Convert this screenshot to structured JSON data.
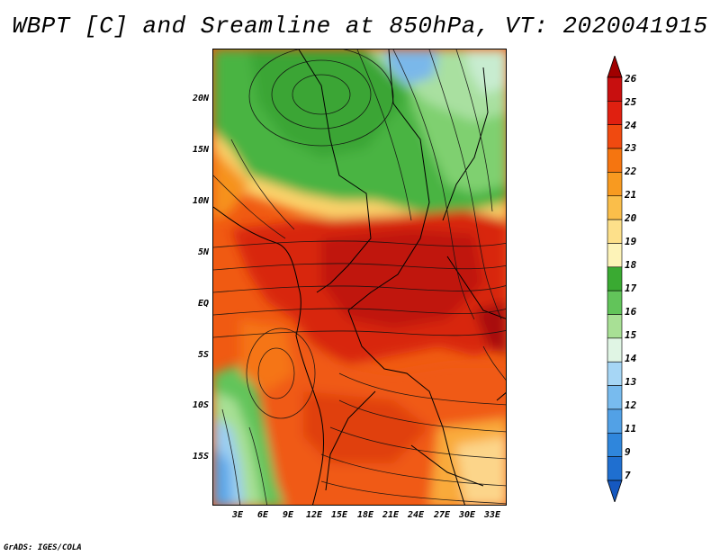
{
  "title": "WBPT [C] and Sreamline at 850hPa, VT: 2020041915",
  "credit": "GrADS: IGES/COLA",
  "lat_labels": [
    "20N",
    "15N",
    "10N",
    "5N",
    "EQ",
    "5S",
    "10S",
    "15S"
  ],
  "lon_labels": [
    "3E",
    "6E",
    "9E",
    "12E",
    "15E",
    "18E",
    "21E",
    "24E",
    "27E",
    "30E",
    "33E"
  ],
  "colorbar": {
    "labels": [
      "26",
      "25",
      "24",
      "23",
      "22",
      "21",
      "20",
      "19",
      "18",
      "17",
      "16",
      "15",
      "14",
      "13",
      "12",
      "11",
      "9",
      "7"
    ],
    "colors": [
      "#a00000",
      "#c80f0f",
      "#e02010",
      "#f04a10",
      "#f57510",
      "#f89a20",
      "#fabe4a",
      "#fde08a",
      "#fdf3b8",
      "#3aaa32",
      "#62c45a",
      "#a8e095",
      "#e0f5e4",
      "#a6d6f5",
      "#78bbee",
      "#52a1e6",
      "#2f86dc",
      "#1f6fd0",
      "#1558c0"
    ]
  }
}
